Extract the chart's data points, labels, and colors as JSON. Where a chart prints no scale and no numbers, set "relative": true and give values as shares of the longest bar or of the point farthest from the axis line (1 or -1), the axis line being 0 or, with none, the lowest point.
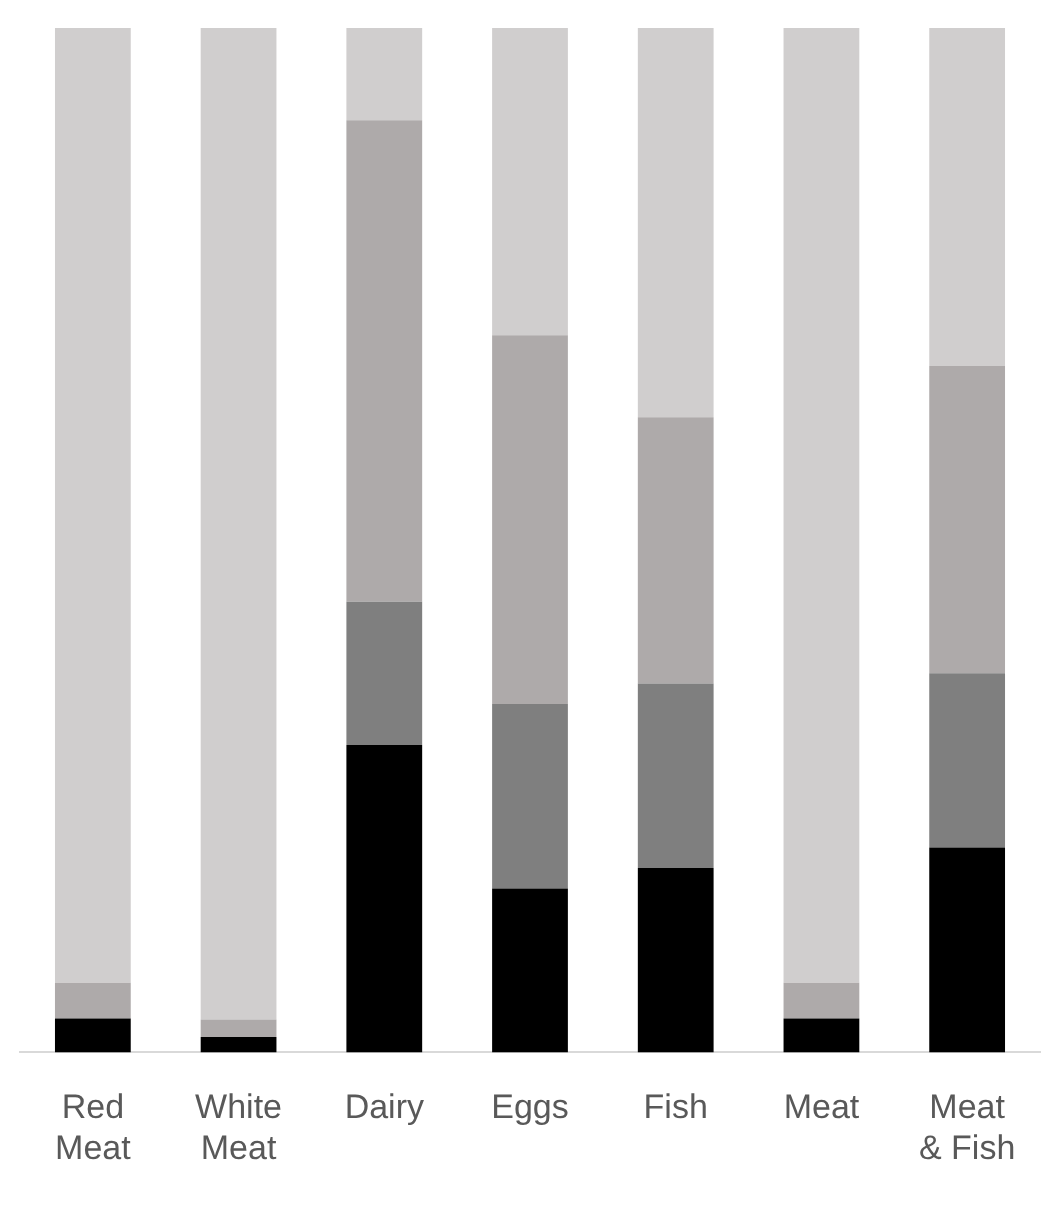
{
  "chart_data": {
    "type": "bar",
    "stacked": true,
    "relative": true,
    "grid": false,
    "legend": false,
    "categories": [
      "Red Meat",
      "White Meat",
      "Dairy",
      "Eggs",
      "Fish",
      "Meat",
      "Meat & Fish"
    ],
    "series": [
      {
        "color": "#000000",
        "values": [
          0.033,
          0.015,
          0.3,
          0.16,
          0.18,
          0.033,
          0.2
        ]
      },
      {
        "color": "#7f7f7f",
        "values": [
          0,
          0,
          0.14,
          0.18,
          0.18,
          0,
          0.17
        ]
      },
      {
        "color": "#aeaaaa",
        "values": [
          0.035,
          0.017,
          0.47,
          0.36,
          0.26,
          0.035,
          0.3
        ]
      },
      {
        "color": "#d0cece",
        "values": [
          0.932,
          0.968,
          0.09,
          0.3,
          0.38,
          0.932,
          0.33
        ]
      }
    ]
  }
}
